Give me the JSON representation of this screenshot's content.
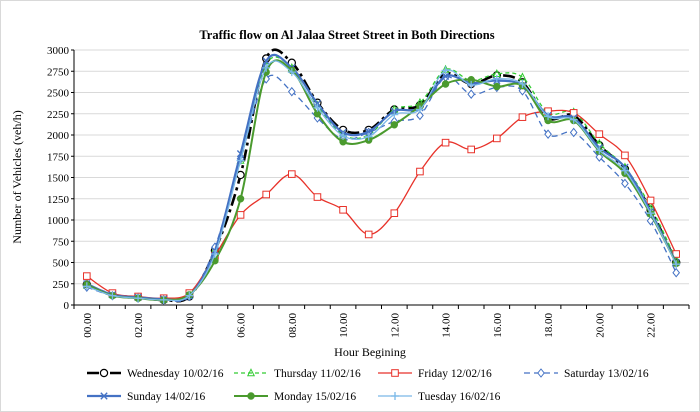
{
  "chart_data": {
    "type": "line",
    "title": "Traffic flow on  Al Jalaa Street Street in Both Directions",
    "xlabel": "Hour Begining",
    "ylabel": "Number of Vehicles (veh/h)",
    "ylim": [
      0,
      3000
    ],
    "yticks": [
      "0",
      "250",
      "500",
      "750",
      "1000",
      "1250",
      "1500",
      "1750",
      "2000",
      "2250",
      "2500",
      "2750",
      "3000"
    ],
    "categories": [
      "00.00",
      "01.00",
      "02.00",
      "03.00",
      "04.00",
      "05.00",
      "06.00",
      "07.00",
      "08.00",
      "09.00",
      "10.00",
      "11.00",
      "12.00",
      "13.00",
      "14.00",
      "15.00",
      "16.00",
      "17.00",
      "18.00",
      "19.00",
      "20.00",
      "21.00",
      "22.00",
      "23.00"
    ],
    "tick_labels": [
      "00.00",
      "02.00",
      "04.00",
      "06.00",
      "08.00",
      "10.00",
      "12.00",
      "14.00",
      "16.00",
      "18.00",
      "20.00",
      "22.00"
    ],
    "series": [
      {
        "name": "Wednesday 10/02/16",
        "color": "#000000",
        "dash": "12,4,3,4",
        "marker": "circle-open",
        "width": 2.6,
        "values": [
          240,
          120,
          90,
          60,
          100,
          640,
          1530,
          2900,
          2850,
          2380,
          2060,
          2060,
          2300,
          2350,
          2720,
          2600,
          2700,
          2620,
          2200,
          2230,
          1880,
          1600,
          1120,
          500
        ]
      },
      {
        "name": "Thursday 11/02/16",
        "color": "#33cc33",
        "dash": "4,3",
        "marker": "triangle",
        "width": 1.3,
        "values": [
          230,
          120,
          90,
          65,
          110,
          650,
          1700,
          2830,
          2790,
          2350,
          2000,
          2000,
          2300,
          2380,
          2770,
          2640,
          2720,
          2680,
          2260,
          2270,
          1900,
          1620,
          1160,
          530
        ]
      },
      {
        "name": "Friday 12/02/16",
        "color": "#e8322a",
        "dash": "",
        "marker": "square-open",
        "width": 1.3,
        "values": [
          340,
          140,
          100,
          80,
          140,
          580,
          1060,
          1300,
          1540,
          1270,
          1120,
          830,
          1080,
          1570,
          1910,
          1830,
          1960,
          2210,
          2280,
          2260,
          2010,
          1760,
          1230,
          600
        ]
      },
      {
        "name": "Saturday 13/02/16",
        "color": "#4472c4",
        "dash": "6,4",
        "marker": "diamond-open",
        "width": 1.3,
        "values": [
          210,
          110,
          80,
          60,
          100,
          680,
          1720,
          2660,
          2510,
          2200,
          1950,
          2030,
          2160,
          2230,
          2680,
          2480,
          2560,
          2520,
          2010,
          2030,
          1740,
          1430,
          990,
          380
        ]
      },
      {
        "name": "Sunday 14/02/16",
        "color": "#4472c4",
        "dash": "",
        "marker": "x",
        "width": 2.2,
        "values": [
          250,
          120,
          90,
          70,
          110,
          640,
          1780,
          2870,
          2790,
          2370,
          2030,
          2040,
          2280,
          2320,
          2690,
          2610,
          2640,
          2580,
          2230,
          2200,
          1850,
          1620,
          1100,
          500
        ]
      },
      {
        "name": "Monday 15/02/16",
        "color": "#4a9a2e",
        "dash": "",
        "marker": "circle",
        "width": 2.0,
        "values": [
          240,
          110,
          80,
          60,
          120,
          520,
          1250,
          2740,
          2760,
          2250,
          1920,
          1940,
          2120,
          2340,
          2600,
          2650,
          2570,
          2580,
          2170,
          2170,
          1810,
          1550,
          1070,
          490
        ]
      },
      {
        "name": "Tuesday 16/02/16",
        "color": "#7ab8e8",
        "dash": "",
        "marker": "plus",
        "width": 1.3,
        "values": [
          220,
          110,
          80,
          60,
          110,
          600,
          1700,
          2790,
          2740,
          2320,
          1990,
          1980,
          2240,
          2300,
          2760,
          2590,
          2660,
          2600,
          2220,
          2180,
          1820,
          1580,
          1080,
          480
        ]
      }
    ]
  }
}
